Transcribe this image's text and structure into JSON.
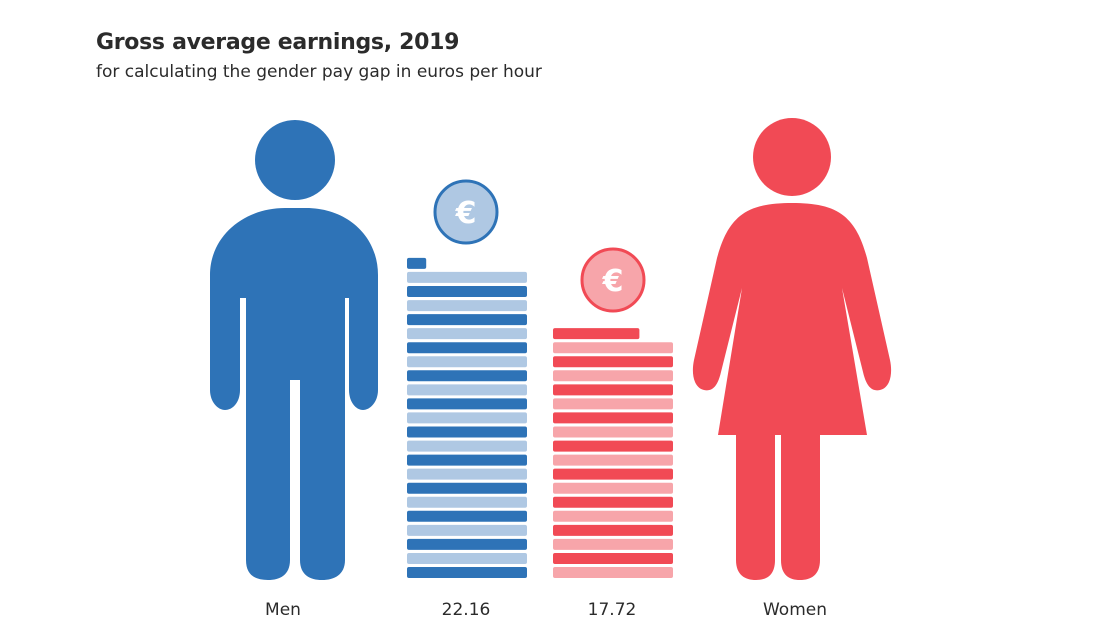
{
  "title": "Gross average earnings, 2019",
  "subtitle": "for calculating the gender pay gap in euros per hour",
  "colors": {
    "men_dark": "#2e73b7",
    "men_light": "#afc8e3",
    "women_dark": "#f14a55",
    "women_light": "#f7a5aa"
  },
  "icons": {
    "euro_symbol": "€"
  },
  "chart_data": {
    "type": "bar",
    "categories": [
      "Men",
      "Women"
    ],
    "values": [
      22.16,
      17.72
    ],
    "value_labels": [
      "22.16",
      "17.72"
    ],
    "unit": "euros per hour"
  }
}
